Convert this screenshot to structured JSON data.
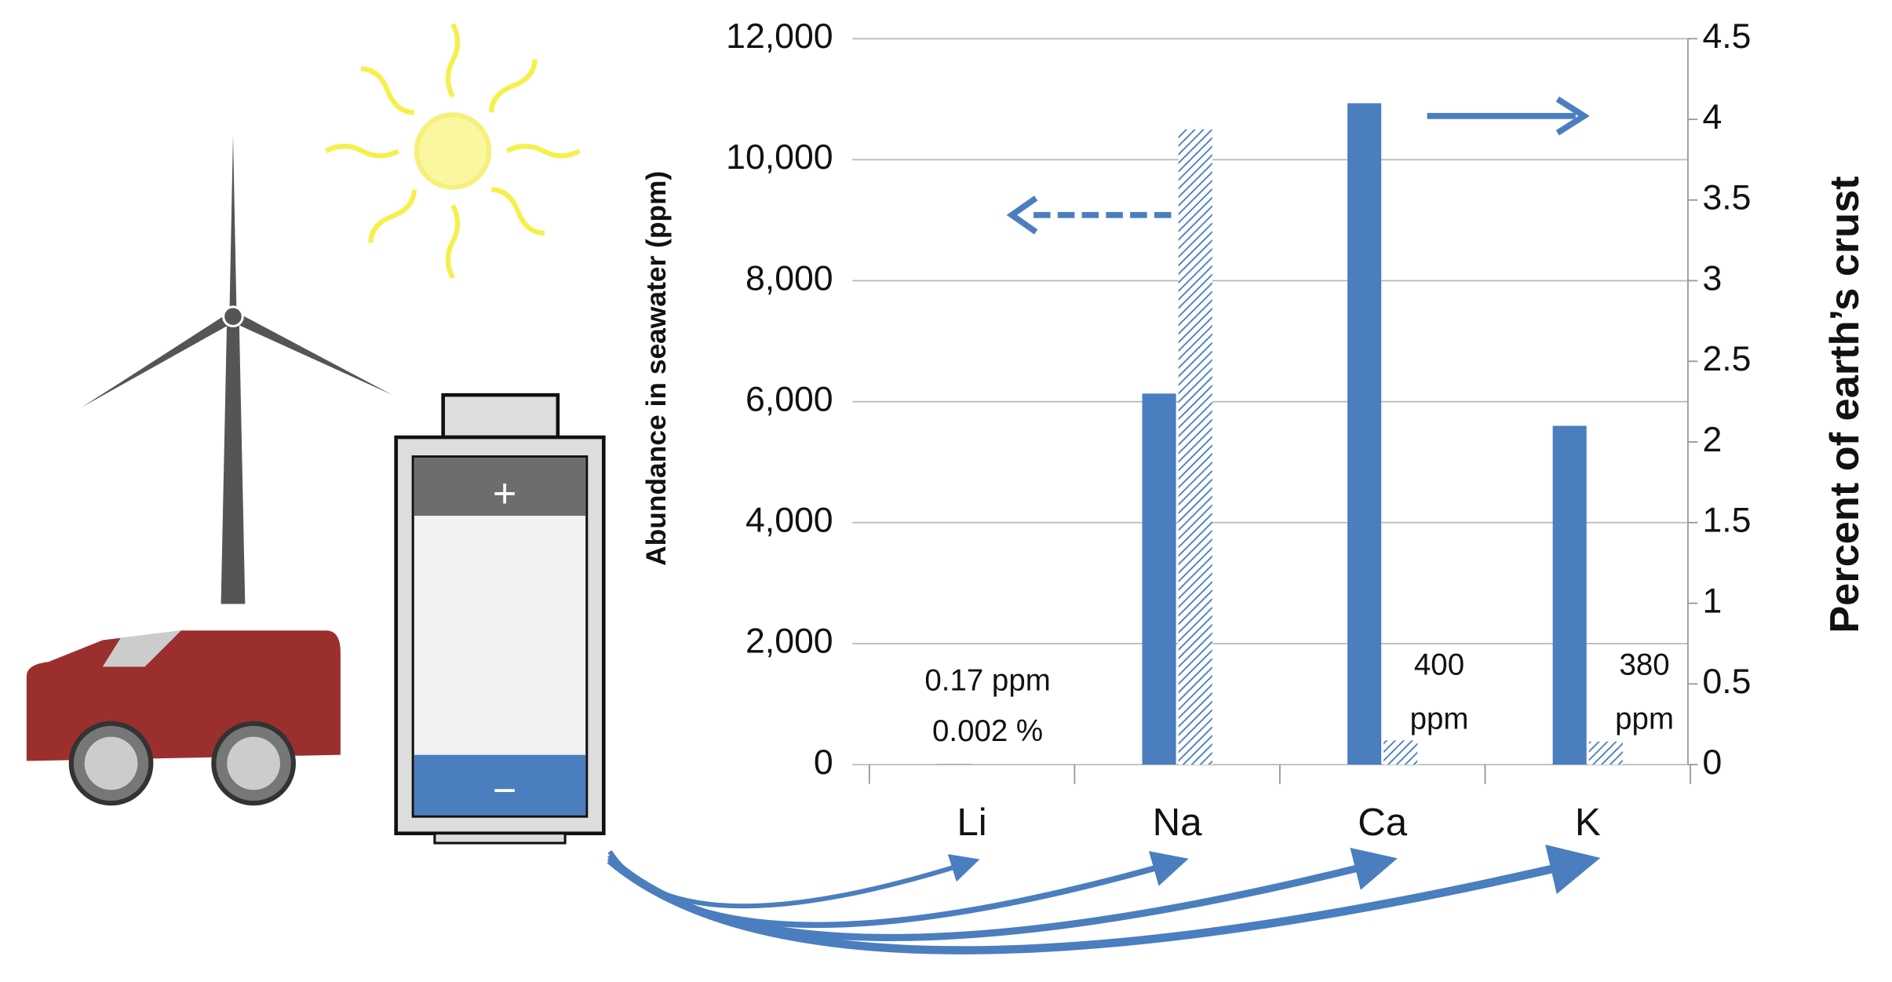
{
  "chart_data": {
    "type": "bar",
    "y_label": "Abundance in seawater (ppm)",
    "y2_label": "Percent of earth’s crust",
    "categories": [
      "Li",
      "Na",
      "Ca",
      "K"
    ],
    "series": [
      {
        "name": "Percent of earth’s crust",
        "color": "#4a7ebf",
        "axis": "y2",
        "values": [
          0.002,
          2.3,
          4.1,
          2.1
        ],
        "value_labels": [
          "0.002 %",
          null,
          null,
          null
        ]
      },
      {
        "name": "Abundance in seawater",
        "color": "#4a7ebf",
        "hatched": true,
        "values": [
          0.17,
          10500,
          400,
          380
        ],
        "value_labels": [
          "0.17 ppm",
          null,
          "400 ppm",
          "380 ppm"
        ]
      }
    ],
    "ylim": [
      0,
      12000
    ],
    "yticks": [
      0,
      {
        "value": 2000,
        "label": "2,000"
      },
      {
        "value": 4000,
        "label": "4,000"
      },
      {
        "value": 6000,
        "label": "6,000"
      },
      {
        "value": 8000,
        "label": "8,000"
      },
      {
        "value": 10000,
        "label": "10,000"
      },
      {
        "value": 12000,
        "label": "12,000"
      }
    ],
    "y2lim": [
      0,
      4.5
    ],
    "y2ticks": [
      0,
      0.5,
      1,
      1.5,
      2,
      2.5,
      3,
      3.5,
      4,
      4.5
    ],
    "grid": true
  },
  "illustration": {
    "battery_positive": "+",
    "battery_negative": "−"
  }
}
